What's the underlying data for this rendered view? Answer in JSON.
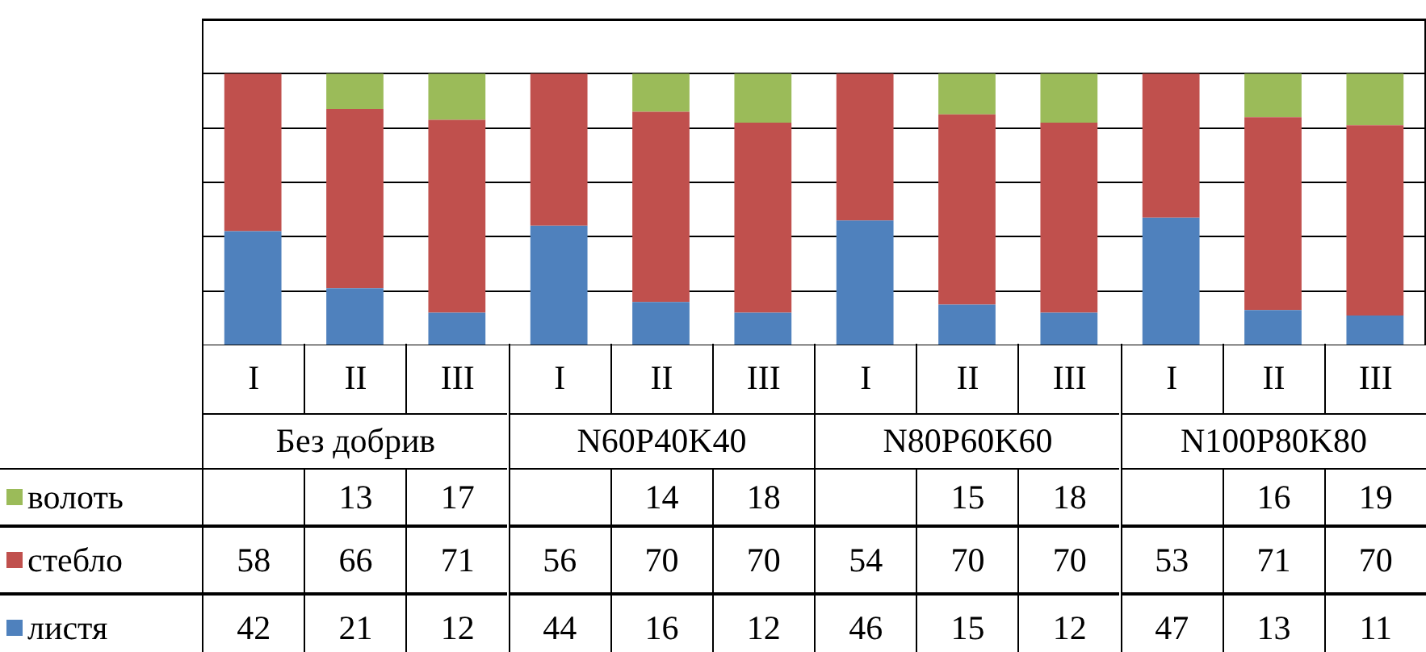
{
  "chart_data": {
    "type": "bar",
    "stacked": true,
    "categories": [
      "I",
      "II",
      "III",
      "I",
      "II",
      "III",
      "I",
      "II",
      "III",
      "I",
      "II",
      "III"
    ],
    "annotations": [
      "Без добрив",
      "N60P40K40",
      "N80P60K60",
      "N100P80K80"
    ],
    "series": [
      {
        "name": "листя",
        "color": "#4f81bd",
        "values": [
          42,
          21,
          12,
          44,
          16,
          12,
          46,
          15,
          12,
          47,
          13,
          11
        ]
      },
      {
        "name": "стебло",
        "color": "#c0504d",
        "values": [
          58,
          66,
          71,
          56,
          70,
          70,
          54,
          70,
          70,
          53,
          71,
          70
        ]
      },
      {
        "name": "волоть",
        "color": "#9bbb59",
        "values": [
          null,
          13,
          17,
          null,
          14,
          18,
          null,
          15,
          18,
          null,
          16,
          19
        ]
      }
    ],
    "ylim": [
      0,
      120
    ],
    "yticks": [
      {
        "value": 0,
        "label": null
      },
      {
        "value": 20,
        "label": null
      },
      {
        "value": 40,
        "label": null
      },
      {
        "value": 60,
        "label": null
      },
      {
        "value": 80,
        "label": null
      },
      {
        "value": 100,
        "label": null
      },
      {
        "value": 120,
        "label": null
      }
    ],
    "grid": "y",
    "legend": "bottom",
    "data_labels": true,
    "tick_labels": "x"
  }
}
